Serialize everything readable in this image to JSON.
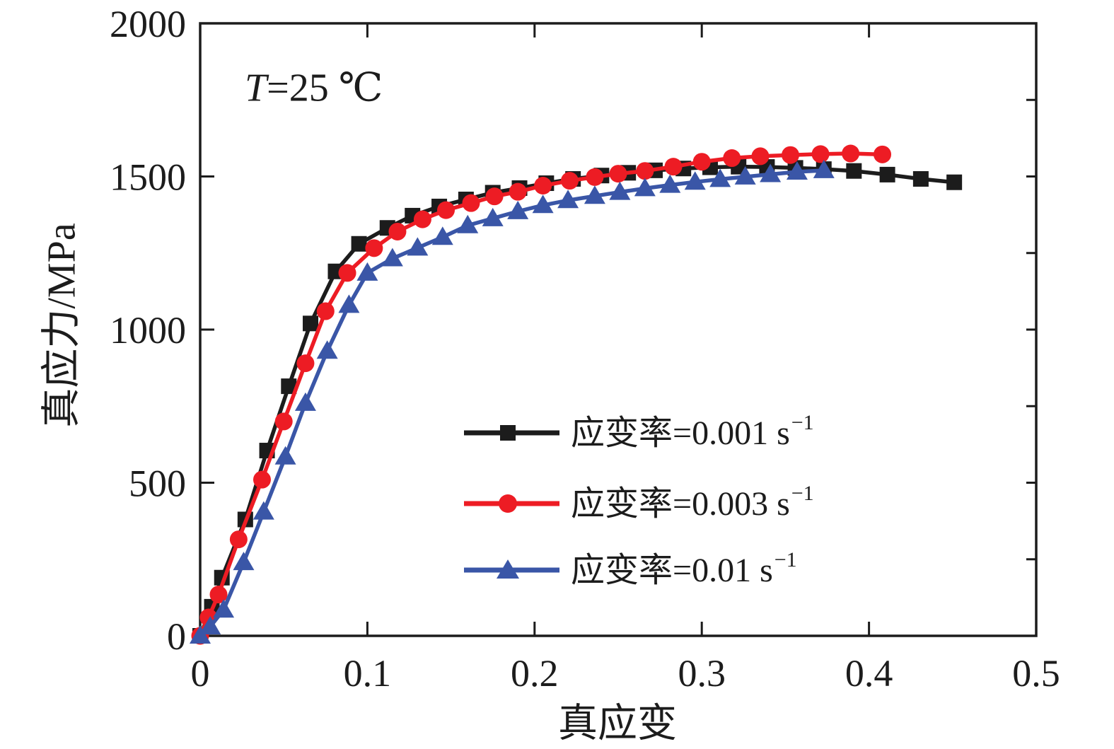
{
  "figure": {
    "annotation": {
      "variable": "T",
      "rest": "=25 ℃"
    },
    "x_title": "真应变",
    "y_title": "真应力/MPa"
  },
  "chart_data": {
    "type": "line",
    "title": "",
    "xlabel": "真应变",
    "ylabel": "真应力/MPa",
    "xlim": [
      0,
      0.5
    ],
    "ylim": [
      0,
      2000
    ],
    "grid": false,
    "legend_position": "inside-right-center",
    "annotation": "T=25 ℃",
    "x_ticks": {
      "values": [
        0,
        0.1,
        0.2,
        0.3,
        0.4,
        0.5
      ],
      "labels": [
        "0",
        "0.1",
        "0.2",
        "0.3",
        "0.4",
        "0.5"
      ]
    },
    "y_ticks": {
      "values": [
        0,
        500,
        1000,
        1500,
        2000
      ],
      "labels": [
        "0",
        "500",
        "1000",
        "1500",
        "2000"
      ]
    },
    "right_minor_tick_interval_mpa": 250,
    "series": [
      {
        "name": "strain-rate-0.001",
        "legend_label": "应变率=0.001 s",
        "legend_sup": "−1",
        "strain_rate_s-1": 0.001,
        "color": "#1c1c1c",
        "marker": "square",
        "x": [
          0,
          0.007,
          0.013,
          0.027,
          0.04,
          0.053,
          0.066,
          0.081,
          0.095,
          0.112,
          0.127,
          0.143,
          0.159,
          0.175,
          0.191,
          0.207,
          0.223,
          0.24,
          0.256,
          0.272,
          0.289,
          0.305,
          0.322,
          0.339,
          0.356,
          0.373,
          0.391,
          0.411,
          0.431,
          0.451
        ],
        "y": [
          0,
          95,
          190,
          380,
          605,
          815,
          1020,
          1190,
          1280,
          1332,
          1372,
          1402,
          1425,
          1447,
          1462,
          1478,
          1492,
          1503,
          1512,
          1520,
          1526,
          1530,
          1532,
          1531,
          1528,
          1524,
          1518,
          1506,
          1492,
          1481
        ]
      },
      {
        "name": "strain-rate-0.003",
        "legend_label": "应变率=0.003 s",
        "legend_sup": "−1",
        "strain_rate_s-1": 0.003,
        "color": "#ed1c24",
        "marker": "circle",
        "x": [
          0,
          0.005,
          0.011,
          0.023,
          0.037,
          0.05,
          0.063,
          0.075,
          0.088,
          0.104,
          0.118,
          0.133,
          0.147,
          0.162,
          0.176,
          0.19,
          0.205,
          0.221,
          0.236,
          0.25,
          0.266,
          0.283,
          0.3,
          0.318,
          0.335,
          0.353,
          0.371,
          0.389,
          0.408
        ],
        "y": [
          0,
          60,
          135,
          315,
          510,
          700,
          890,
          1060,
          1185,
          1266,
          1320,
          1360,
          1390,
          1413,
          1435,
          1450,
          1470,
          1486,
          1498,
          1509,
          1518,
          1532,
          1548,
          1560,
          1566,
          1570,
          1573,
          1575,
          1572
        ]
      },
      {
        "name": "strain-rate-0.01",
        "legend_label": "应变率=0.01 s",
        "legend_sup": "−1",
        "strain_rate_s-1": 0.01,
        "color": "#3a56a7",
        "marker": "triangle",
        "x": [
          0,
          0.006,
          0.014,
          0.026,
          0.038,
          0.051,
          0.063,
          0.076,
          0.089,
          0.1,
          0.115,
          0.13,
          0.145,
          0.16,
          0.175,
          0.19,
          0.205,
          0.22,
          0.236,
          0.251,
          0.266,
          0.281,
          0.296,
          0.311,
          0.326,
          0.341,
          0.357,
          0.373
        ],
        "y": [
          0,
          30,
          85,
          240,
          405,
          585,
          760,
          930,
          1080,
          1185,
          1232,
          1267,
          1302,
          1340,
          1363,
          1386,
          1406,
          1422,
          1436,
          1449,
          1461,
          1472,
          1482,
          1491,
          1499,
          1507,
          1515,
          1520
        ]
      }
    ]
  }
}
